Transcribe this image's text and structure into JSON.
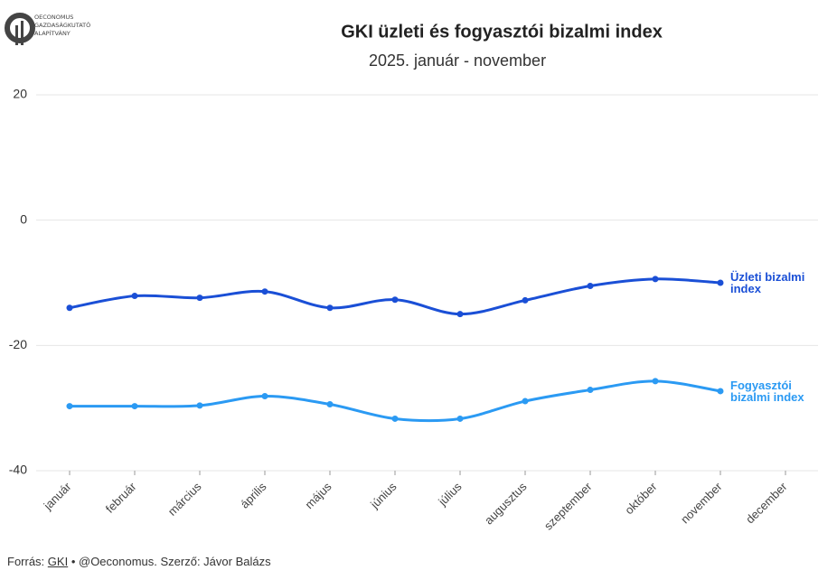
{
  "logo": {
    "lines": [
      "OECONOMUS",
      "GAZDASÁGKUTATÓ",
      "ALAPÍTVÁNY"
    ]
  },
  "chart_data": {
    "type": "line",
    "title": "GKI üzleti és fogyasztói bizalmi index",
    "subtitle": "2025. január - november",
    "categories": [
      "január",
      "február",
      "március",
      "április",
      "május",
      "június",
      "július",
      "augusztus",
      "szeptember",
      "október",
      "november",
      "december"
    ],
    "series": [
      {
        "name": "Üzleti bizalmi index",
        "color": "#1a4fd6",
        "values": [
          -14.0,
          -12.1,
          -12.4,
          -11.4,
          -14.0,
          -12.7,
          -15.0,
          -12.8,
          -10.5,
          -9.4,
          -10.0,
          null
        ]
      },
      {
        "name": "Fogyasztói bizalmi index",
        "color": "#2b9af3",
        "values": [
          -29.7,
          -29.7,
          -29.6,
          -28.1,
          -29.4,
          -31.7,
          -31.7,
          -28.9,
          -27.1,
          -25.7,
          -27.3,
          null
        ]
      }
    ],
    "ylim": [
      -40,
      20
    ],
    "yticks": [
      -40,
      -20,
      0,
      20
    ],
    "grid": true
  },
  "footer": {
    "source_label": "Forrás:",
    "source_link": "GKI",
    "credit": "• @Oeconomus. Szerző: Jávor Balázs"
  }
}
